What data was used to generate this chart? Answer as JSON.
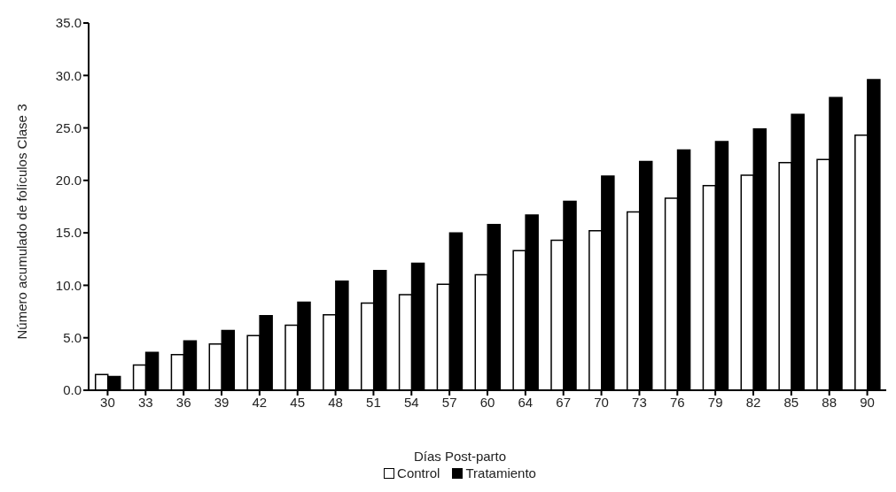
{
  "chart_data": {
    "type": "bar",
    "xlabel": "Días Post-parto",
    "ylabel": "Número acumulado de folículos Clase 3",
    "categories": [
      "30",
      "33",
      "36",
      "39",
      "42",
      "45",
      "48",
      "51",
      "54",
      "57",
      "60",
      "64",
      "67",
      "70",
      "73",
      "76",
      "79",
      "82",
      "85",
      "88",
      "90"
    ],
    "series": [
      {
        "name": "Control",
        "color": "#ffffff",
        "values": [
          1.5,
          2.4,
          3.4,
          4.4,
          5.2,
          6.2,
          7.2,
          8.3,
          9.1,
          10.1,
          11.0,
          13.3,
          14.3,
          15.2,
          17.0,
          18.3,
          19.5,
          20.5,
          21.7,
          22.0,
          24.3
        ]
      },
      {
        "name": "Tratamiento",
        "color": "#000000",
        "values": [
          1.3,
          3.6,
          4.7,
          5.7,
          7.1,
          8.4,
          10.4,
          11.4,
          12.1,
          15.0,
          15.8,
          16.7,
          18.0,
          20.4,
          21.8,
          22.9,
          23.7,
          24.9,
          26.3,
          27.9,
          29.6
        ]
      }
    ],
    "ylim": [
      0,
      35
    ],
    "yticks": [
      {
        "value": 0,
        "label": "0.0"
      },
      {
        "value": 5,
        "label": "5.0"
      },
      {
        "value": 10,
        "label": "10.0"
      },
      {
        "value": 15,
        "label": "15.0"
      },
      {
        "value": 20,
        "label": "20.0"
      },
      {
        "value": 25,
        "label": "25.0"
      },
      {
        "value": 30,
        "label": "30.0"
      },
      {
        "value": 35,
        "label": "35.0"
      }
    ],
    "grid": false,
    "legend": "bottom"
  }
}
